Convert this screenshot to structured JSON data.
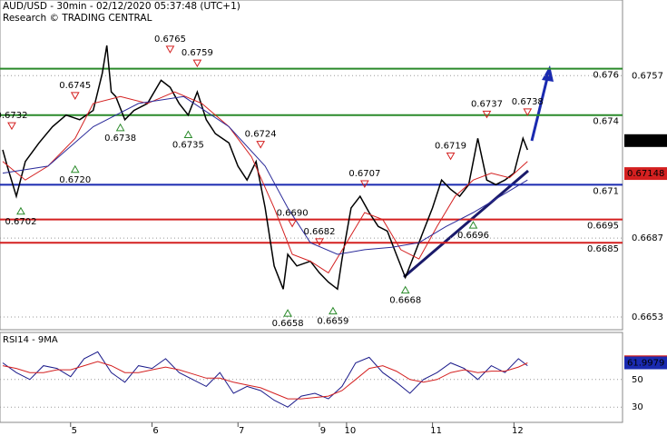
{
  "chart_data": [
    {
      "type": "line",
      "title": "AUD/USD - 30min - 02/12/2020 05:37:48 (UTC+1)",
      "subtitle": "Research © TRADING CENTRAL",
      "xlim": [
        0,
        137
      ],
      "ylim": [
        0.66475,
        0.67896
      ],
      "yticks": [
        0.6757,
        0.6687,
        0.6653
      ],
      "grid": true,
      "series": [
        {
          "color": "#000000",
          "x": [
            0,
            1,
            3,
            5,
            8,
            11,
            14,
            17,
            20,
            22,
            23,
            24,
            25,
            27,
            29,
            32,
            35,
            37,
            39,
            41,
            43,
            45,
            47,
            50,
            52,
            54,
            56,
            58,
            60,
            62,
            63,
            65,
            68,
            70,
            72,
            74,
            75,
            77,
            79,
            81,
            83,
            85,
            87,
            89,
            91,
            93,
            95,
            97,
            99,
            101,
            103,
            105,
            107,
            109,
            111,
            113,
            115,
            116
          ],
          "values": [
            0.6725,
            0.6718,
            0.6705,
            0.672,
            0.6728,
            0.6735,
            0.674,
            0.6738,
            0.6742,
            0.6758,
            0.677,
            0.675,
            0.6748,
            0.6738,
            0.6742,
            0.6745,
            0.6755,
            0.6752,
            0.6745,
            0.674,
            0.675,
            0.6738,
            0.6732,
            0.6728,
            0.6718,
            0.6712,
            0.672,
            0.67,
            0.6675,
            0.6665,
            0.668,
            0.6675,
            0.6677,
            0.6672,
            0.6668,
            0.6665,
            0.6678,
            0.67,
            0.6705,
            0.6698,
            0.6692,
            0.669,
            0.668,
            0.667,
            0.668,
            0.669,
            0.67,
            0.6712,
            0.6708,
            0.6705,
            0.671,
            0.673,
            0.6712,
            0.671,
            0.6712,
            0.6715,
            0.673,
            0.6725
          ]
        },
        {
          "color": "#d42020",
          "x": [
            0,
            5,
            10,
            16,
            20,
            26,
            32,
            38,
            44,
            50,
            55,
            60,
            64,
            68,
            72,
            76,
            80,
            84,
            88,
            92,
            96,
            100,
            104,
            108,
            112,
            116
          ],
          "values": [
            0.672,
            0.6712,
            0.6718,
            0.673,
            0.6745,
            0.6748,
            0.6745,
            0.675,
            0.6745,
            0.6735,
            0.6722,
            0.67,
            0.668,
            0.6677,
            0.6672,
            0.6685,
            0.6698,
            0.6695,
            0.6682,
            0.6678,
            0.6692,
            0.6705,
            0.6712,
            0.6715,
            0.6713,
            0.672
          ]
        },
        {
          "color": "#2b2b9a",
          "x": [
            0,
            10,
            20,
            30,
            40,
            50,
            58,
            63,
            68,
            74,
            80,
            86,
            92,
            98,
            104,
            110,
            116
          ],
          "values": [
            0.6715,
            0.6718,
            0.6735,
            0.6745,
            0.6748,
            0.6735,
            0.6718,
            0.67,
            0.6685,
            0.668,
            0.6682,
            0.6683,
            0.6685,
            0.6692,
            0.6698,
            0.6705,
            0.6712
          ]
        }
      ],
      "levels": [
        {
          "value": 0.676,
          "color": "#2a8a2a"
        },
        {
          "value": 0.674,
          "color": "#2a8a2a"
        },
        {
          "value": 0.671,
          "color": "#1a2ab0"
        },
        {
          "value": 0.6695,
          "color": "#d42020"
        },
        {
          "value": 0.6685,
          "color": "#d42020"
        }
      ],
      "price_labels": [
        {
          "value": 0.6729,
          "color": "#000000"
        },
        {
          "value": 0.67148,
          "color": "#d42020"
        }
      ],
      "annotations": [
        {
          "x": 2,
          "value": 0.6732,
          "label": "0.6732",
          "dir": "down"
        },
        {
          "x": 16,
          "value": 0.6745,
          "label": "0.6745",
          "dir": "down"
        },
        {
          "x": 37,
          "value": 0.6765,
          "label": "0.6765",
          "dir": "down"
        },
        {
          "x": 43,
          "value": 0.6759,
          "label": "0.6759",
          "dir": "down"
        },
        {
          "x": 26,
          "value": 0.6738,
          "label": "0.6738",
          "dir": "up"
        },
        {
          "x": 41,
          "value": 0.6735,
          "label": "0.6735",
          "dir": "up"
        },
        {
          "x": 57,
          "value": 0.6724,
          "label": "0.6724",
          "dir": "down"
        },
        {
          "x": 16,
          "value": 0.672,
          "label": "0.6720",
          "dir": "up"
        },
        {
          "x": 4,
          "value": 0.6702,
          "label": "0.6702",
          "dir": "up"
        },
        {
          "x": 64,
          "value": 0.669,
          "label": "0.6690",
          "dir": "down"
        },
        {
          "x": 70,
          "value": 0.6682,
          "label": "0.6682",
          "dir": "down"
        },
        {
          "x": 63,
          "value": 0.6658,
          "label": "0.6658",
          "dir": "up"
        },
        {
          "x": 73,
          "value": 0.6659,
          "label": "0.6659",
          "dir": "up"
        },
        {
          "x": 80,
          "value": 0.6707,
          "label": "0.6707",
          "dir": "down"
        },
        {
          "x": 89,
          "value": 0.6668,
          "label": "0.6668",
          "dir": "up"
        },
        {
          "x": 99,
          "value": 0.6719,
          "label": "0.6719",
          "dir": "down"
        },
        {
          "x": 107,
          "value": 0.6737,
          "label": "0.6737",
          "dir": "down"
        },
        {
          "x": 116,
          "value": 0.6738,
          "label": "0.6738",
          "dir": "down"
        },
        {
          "x": 104,
          "value": 0.6696,
          "label": "0.6696",
          "dir": "up"
        }
      ]
    },
    {
      "type": "line",
      "title": "RSI14 - 9MA",
      "xlim": [
        0,
        137
      ],
      "ylim": [
        19,
        84
      ],
      "yticks": [
        50,
        30
      ],
      "grid": true,
      "xticks": [
        {
          "value": 15,
          "label": "5"
        },
        {
          "value": 33,
          "label": "6"
        },
        {
          "value": 52,
          "label": "7"
        },
        {
          "value": 70,
          "label": "9"
        },
        {
          "value": 76,
          "label": "10"
        },
        {
          "value": 95,
          "label": "11"
        },
        {
          "value": 113,
          "label": "12"
        }
      ],
      "series": [
        {
          "color": "#1a1a8a",
          "x": [
            0,
            3,
            6,
            9,
            12,
            15,
            18,
            21,
            24,
            27,
            30,
            33,
            36,
            39,
            42,
            45,
            48,
            51,
            54,
            57,
            60,
            63,
            66,
            69,
            72,
            75,
            78,
            81,
            84,
            87,
            90,
            93,
            96,
            99,
            102,
            105,
            108,
            111,
            114,
            116
          ],
          "values": [
            62,
            55,
            50,
            60,
            58,
            52,
            65,
            70,
            55,
            48,
            60,
            58,
            65,
            55,
            50,
            45,
            55,
            40,
            45,
            42,
            35,
            30,
            38,
            40,
            36,
            45,
            62,
            66,
            55,
            48,
            40,
            50,
            55,
            62,
            58,
            50,
            60,
            55,
            65,
            60
          ]
        },
        {
          "color": "#d42020",
          "x": [
            0,
            3,
            6,
            9,
            12,
            15,
            18,
            21,
            24,
            27,
            30,
            33,
            36,
            39,
            42,
            45,
            48,
            51,
            54,
            57,
            60,
            63,
            66,
            69,
            72,
            75,
            78,
            81,
            84,
            87,
            90,
            93,
            96,
            99,
            102,
            105,
            108,
            111,
            114,
            116
          ],
          "values": [
            60,
            58,
            55,
            55,
            57,
            57,
            60,
            63,
            60,
            55,
            55,
            57,
            59,
            57,
            54,
            51,
            51,
            48,
            46,
            44,
            40,
            36,
            36,
            37,
            38,
            42,
            50,
            58,
            60,
            56,
            50,
            48,
            50,
            55,
            57,
            55,
            56,
            56,
            59,
            62
          ]
        }
      ],
      "price_labels": [
        {
          "value": 62.806,
          "color": "#d42020"
        },
        {
          "value": 61.9979,
          "color": "#1a2ab0"
        }
      ]
    }
  ]
}
